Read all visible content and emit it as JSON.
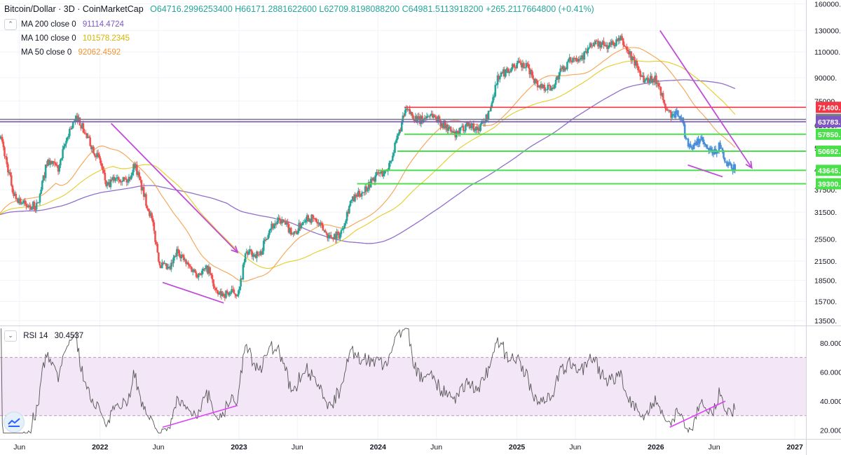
{
  "header": {
    "symbol": "Bitcoin/Dollar · 3D · CoinMarketCap",
    "open": "O64716.2996253400",
    "high": "H66171.2881622600",
    "low": "L62709.8198088200",
    "close": "C64981.5113918200",
    "change": "+265.2117664800 (+0.41%)"
  },
  "moving_averages": [
    {
      "label": "MA 200 close 0",
      "value": "91114.4724",
      "color": "#7e57c2"
    },
    {
      "label": "MA 100 close 0",
      "value": "101578.2345",
      "color": "#e0c400"
    },
    {
      "label": "MA 50 close 0",
      "value": "92062.4592",
      "color": "#f59331"
    }
  ],
  "rsi": {
    "label": "RSI 14",
    "value": "30.4537",
    "upper_band": 70,
    "lower_band": 30
  },
  "icons": {
    "collapse": "chevron-up-icon",
    "logo": "tradingview-logo-icon"
  },
  "colors": {
    "up": "#26a69a",
    "down": "#ef5350",
    "recent": "#4a8fd8",
    "resistance": "#f23645",
    "support": "#4be04b",
    "trendline": "#c04bd8",
    "rsi_band": "#f3e6f7",
    "rsi_line": "#555555"
  },
  "chart_data": {
    "type": "candlestick",
    "title": "Bitcoin/Dollar · 3D · CoinMarketCap",
    "y_scale": "log",
    "y_ticks": [
      160000,
      130000,
      110000,
      90000,
      75000,
      62000,
      52000,
      44000,
      37500,
      31500,
      25500,
      21500,
      18500,
      15700,
      13500
    ],
    "y_tick_labels": [
      "160000.",
      "130000.",
      "110000.",
      "90000.",
      "75000.",
      "62000.",
      "52000.",
      "44000.",
      "37500.",
      "31500.",
      "25500.",
      "21500.",
      "18500.",
      "15700.",
      "13500."
    ],
    "x_ticks": [
      {
        "t": 2021.42,
        "label": "Jun"
      },
      {
        "t": 2022.0,
        "label": "2022"
      },
      {
        "t": 2022.42,
        "label": "Jun"
      },
      {
        "t": 2023.0,
        "label": "2023"
      },
      {
        "t": 2023.42,
        "label": "Jun"
      },
      {
        "t": 2024.0,
        "label": "2024"
      },
      {
        "t": 2024.42,
        "label": "Jun"
      },
      {
        "t": 2025.0,
        "label": "2025"
      },
      {
        "t": 2025.42,
        "label": "Jun"
      },
      {
        "t": 2026.0,
        "label": "2026"
      },
      {
        "t": 2026.42,
        "label": "Jun"
      },
      {
        "t": 2027.0,
        "label": "2027"
      }
    ],
    "x_range": [
      2021.28,
      2027.08
    ],
    "y_range": [
      13000,
      165000
    ],
    "price_anchors": [
      [
        2021.28,
        58000
      ],
      [
        2021.32,
        48000
      ],
      [
        2021.38,
        36000
      ],
      [
        2021.47,
        33000
      ],
      [
        2021.55,
        33000
      ],
      [
        2021.62,
        47000
      ],
      [
        2021.7,
        44000
      ],
      [
        2021.78,
        60000
      ],
      [
        2021.84,
        66000
      ],
      [
        2021.9,
        57000
      ],
      [
        2022.0,
        47000
      ],
      [
        2022.05,
        38000
      ],
      [
        2022.12,
        42000
      ],
      [
        2022.2,
        40000
      ],
      [
        2022.25,
        46000
      ],
      [
        2022.3,
        38000
      ],
      [
        2022.37,
        30000
      ],
      [
        2022.43,
        21000
      ],
      [
        2022.5,
        20000
      ],
      [
        2022.56,
        23500
      ],
      [
        2022.62,
        21000
      ],
      [
        2022.7,
        19500
      ],
      [
        2022.78,
        20200
      ],
      [
        2022.84,
        16500
      ],
      [
        2022.95,
        16800
      ],
      [
        2023.0,
        16800
      ],
      [
        2023.05,
        23000
      ],
      [
        2023.15,
        22500
      ],
      [
        2023.22,
        28000
      ],
      [
        2023.3,
        29500
      ],
      [
        2023.4,
        26500
      ],
      [
        2023.48,
        30500
      ],
      [
        2023.55,
        29500
      ],
      [
        2023.65,
        26000
      ],
      [
        2023.73,
        26500
      ],
      [
        2023.8,
        34000
      ],
      [
        2023.9,
        37500
      ],
      [
        2024.0,
        42500
      ],
      [
        2024.06,
        43000
      ],
      [
        2024.12,
        52000
      ],
      [
        2024.2,
        70000
      ],
      [
        2024.3,
        64000
      ],
      [
        2024.38,
        68000
      ],
      [
        2024.48,
        62000
      ],
      [
        2024.56,
        57000
      ],
      [
        2024.64,
        63000
      ],
      [
        2024.72,
        60000
      ],
      [
        2024.8,
        68000
      ],
      [
        2024.86,
        90000
      ],
      [
        2024.95,
        97000
      ],
      [
        2025.0,
        100000
      ],
      [
        2025.08,
        97000
      ],
      [
        2025.15,
        85000
      ],
      [
        2025.25,
        83000
      ],
      [
        2025.32,
        95000
      ],
      [
        2025.4,
        105000
      ],
      [
        2025.48,
        107000
      ],
      [
        2025.55,
        118000
      ],
      [
        2025.65,
        115000
      ],
      [
        2025.75,
        121000
      ],
      [
        2025.8,
        110000
      ],
      [
        2025.85,
        101000
      ],
      [
        2025.92,
        88000
      ],
      [
        2025.97,
        90000
      ],
      [
        2026.02,
        87000
      ],
      [
        2026.06,
        72000
      ],
      [
        2026.1,
        68000
      ],
      [
        2026.13,
        66000
      ]
    ],
    "recent_anchors": [
      [
        2026.13,
        66000
      ],
      [
        2026.16,
        69000
      ],
      [
        2026.19,
        64000
      ],
      [
        2026.22,
        55000
      ],
      [
        2026.27,
        52000
      ],
      [
        2026.32,
        56000
      ],
      [
        2026.37,
        51000
      ],
      [
        2026.42,
        50000
      ],
      [
        2026.46,
        53000
      ],
      [
        2026.5,
        46000
      ],
      [
        2026.54,
        44500
      ],
      [
        2026.57,
        45000
      ]
    ],
    "horizontal_lines": [
      {
        "price": 71400,
        "label": "71400.",
        "color": "#f23645",
        "from": 2024.19
      },
      {
        "price": 64981,
        "label": "64981.",
        "color": "#787b86",
        "from": 2021.28
      },
      {
        "price": 63783,
        "label": "63783.",
        "color": "#7e57c2",
        "from": 2021.28
      },
      {
        "price": 57850,
        "label": "57850.",
        "color": "#4be04b",
        "from": 2024.19
      },
      {
        "price": 50692,
        "label": "50692.",
        "color": "#4be04b",
        "from": 2024.14
      },
      {
        "price": 43645,
        "label": "43645.",
        "color": "#4be04b",
        "from": 2024.0
      },
      {
        "price": 39300,
        "label": "39300.",
        "color": "#4be04b",
        "from": 2023.85
      }
    ],
    "trendlines": [
      {
        "from": [
          2022.08,
          63000
        ],
        "to": [
          2022.99,
          23000
        ],
        "arrow": true
      },
      {
        "from": [
          2022.45,
          18200
        ],
        "to": [
          2022.89,
          15500
        ],
        "arrow": false
      },
      {
        "from": [
          2026.03,
          130000
        ],
        "to": [
          2026.69,
          44500
        ],
        "arrow": true
      },
      {
        "from": [
          2026.23,
          45500
        ],
        "to": [
          2026.48,
          41500
        ],
        "arrow": false
      }
    ],
    "rsi_trendlines": [
      {
        "from": [
          2022.45,
          22
        ],
        "to": [
          2022.99,
          37
        ]
      },
      {
        "from": [
          2026.1,
          22
        ],
        "to": [
          2026.5,
          40
        ]
      }
    ],
    "rsi_ticks": [
      80,
      60,
      40,
      20
    ],
    "rsi_tick_labels": [
      "80.000",
      "60.000",
      "40.000",
      "20.000"
    ],
    "rsi_range": [
      14,
      91
    ],
    "series": [
      {
        "name": "MA 200 close 0",
        "color": "#7e57c2",
        "value": 91114.4724
      },
      {
        "name": "MA 100 close 0",
        "color": "#e0c400",
        "value": 101578.2345
      },
      {
        "name": "MA 50 close 0",
        "color": "#f59331",
        "value": 92062.4592
      }
    ]
  }
}
